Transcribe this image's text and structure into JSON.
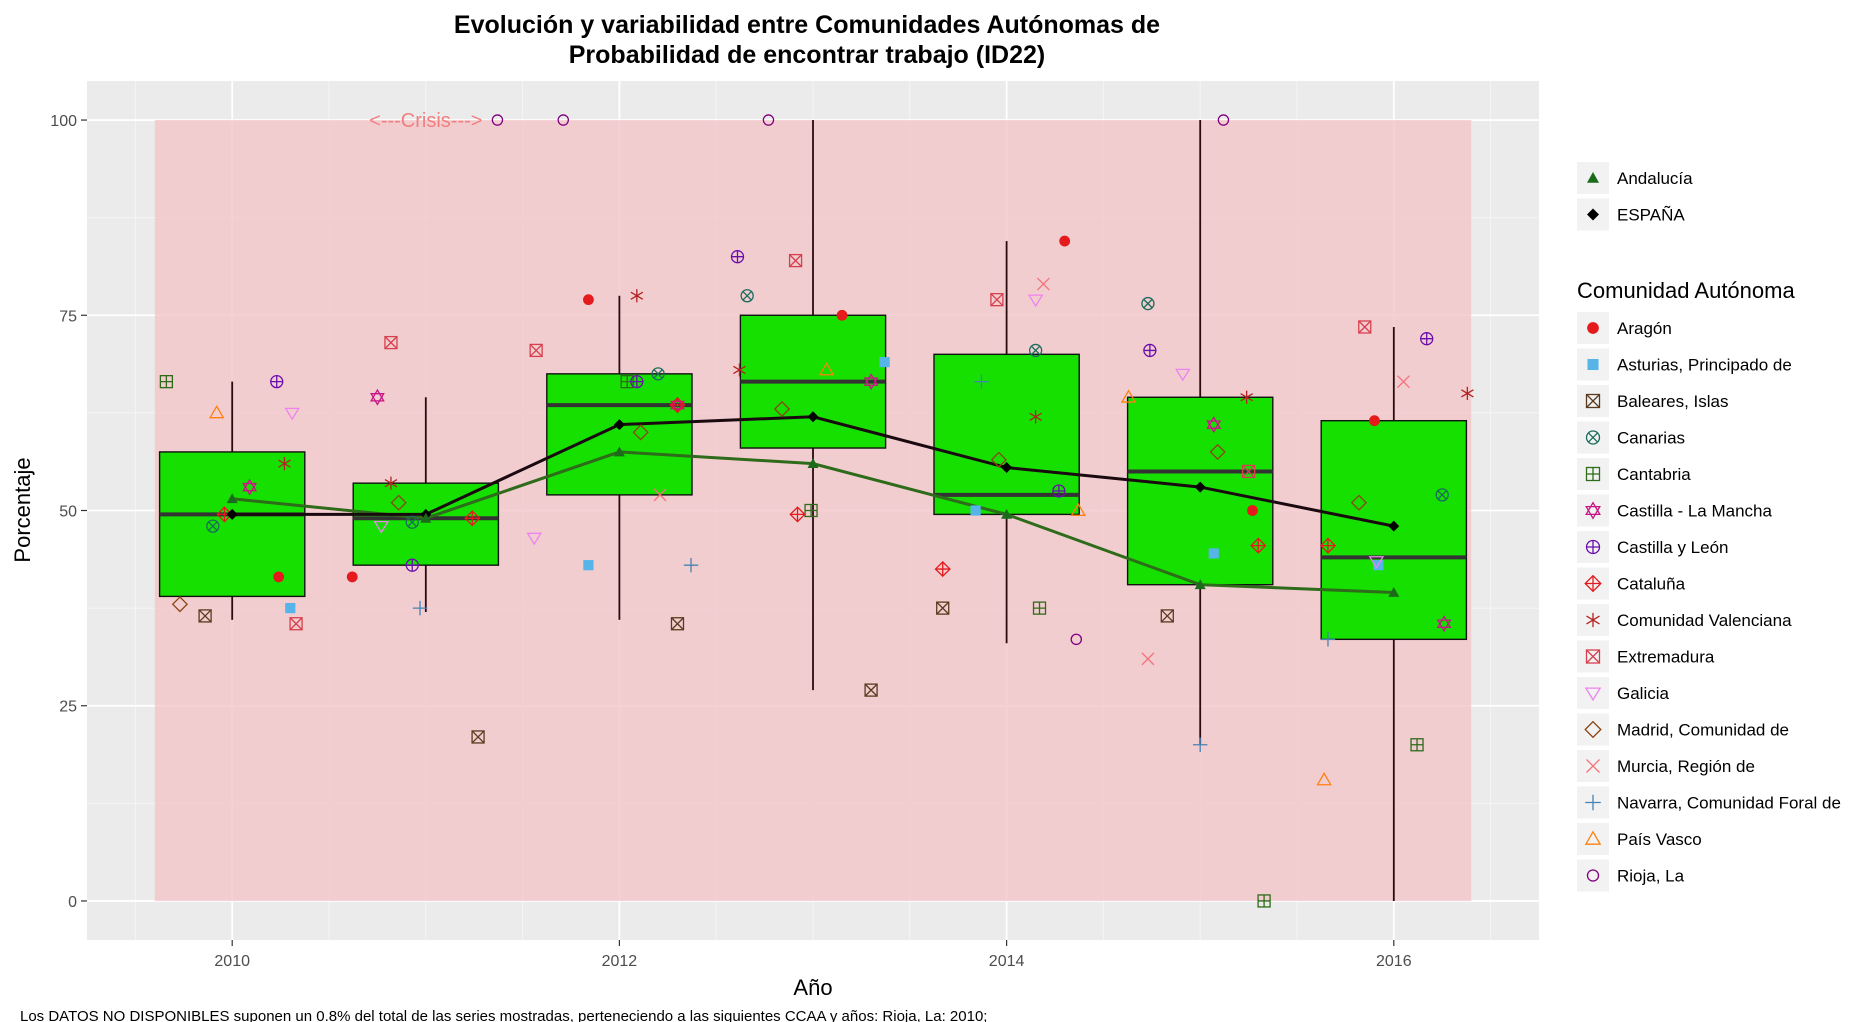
{
  "chart_data": {
    "type": "box",
    "title_line1": "Evolución y variabilidad entre Comunidades Autónomas de",
    "title_line2": "Probabilidad de encontrar trabajo (ID22)",
    "xlabel": "Año",
    "ylabel": "Porcentaje",
    "xlim": [
      2009.25,
      2016.75
    ],
    "ylim": [
      -5,
      105
    ],
    "x_ticks": [
      2010,
      2012,
      2014,
      2016
    ],
    "y_ticks": [
      0,
      25,
      50,
      75,
      100
    ],
    "grid": true,
    "caption": "Los DATOS NO DISPONIBLES suponen un 0.8% del total de las series mostradas, perteneciendo a las siguientes CCAA y años: Rioja, La: 2010;",
    "crisis_region": {
      "x": [
        2009.6,
        2016.4
      ],
      "y": [
        0,
        100
      ],
      "label": "<---Crisis--->",
      "label_x": 2011,
      "label_y": 100,
      "color": "#f08080"
    },
    "colors": {
      "box_fill": "#16e000",
      "panel_bg": "#ebebeb",
      "crisis_fill": "#f4c5c9",
      "median": "#333333",
      "espana_line": "#1a0a10",
      "andalucia_line": "#2e6b1a"
    },
    "boxes": [
      {
        "x": 2010,
        "lower_whisker": 36,
        "q1": 39,
        "median": 49.5,
        "q3": 57.5,
        "upper_whisker": 66.5
      },
      {
        "x": 2011,
        "lower_whisker": 37,
        "q1": 43,
        "median": 49,
        "q3": 53.5,
        "upper_whisker": 64.5
      },
      {
        "x": 2012,
        "lower_whisker": 36,
        "q1": 52,
        "median": 63.5,
        "q3": 67.5,
        "upper_whisker": 77.5
      },
      {
        "x": 2013,
        "lower_whisker": 27,
        "q1": 58,
        "median": 66.5,
        "q3": 75,
        "upper_whisker": 100
      },
      {
        "x": 2014,
        "lower_whisker": 33,
        "q1": 49.5,
        "median": 52,
        "q3": 70,
        "upper_whisker": 84.5
      },
      {
        "x": 2015,
        "lower_whisker": 20,
        "q1": 40.5,
        "median": 55,
        "q3": 64.5,
        "upper_whisker": 100
      },
      {
        "x": 2016,
        "lower_whisker": 0,
        "q1": 33.5,
        "median": 44,
        "q3": 61.5,
        "upper_whisker": 73.5
      }
    ],
    "series": [
      {
        "name": "ESPAÑA",
        "color": "#000000",
        "shape": "diamond",
        "x": [
          2010,
          2011,
          2012,
          2013,
          2014,
          2015,
          2016
        ],
        "values": [
          49.5,
          49.5,
          61,
          62,
          55.5,
          53,
          48
        ]
      },
      {
        "name": "Andalucía",
        "color": "#1a6b1a",
        "shape": "triangle",
        "x": [
          2010,
          2011,
          2012,
          2013,
          2014,
          2015,
          2016
        ],
        "values": [
          51.5,
          49,
          57.5,
          56,
          49.5,
          40.5,
          39.5
        ]
      }
    ],
    "legend_top": [
      {
        "name": "Andalucía",
        "shape": "triangle-filled",
        "color": "#1a6b1a"
      },
      {
        "name": "ESPAÑA",
        "shape": "diamond-filled",
        "color": "#000000"
      }
    ],
    "legend_title": "Comunidad Autónoma",
    "legend": [
      {
        "name": "Aragón",
        "shape": "circle-filled",
        "color": "#e41a1c"
      },
      {
        "name": "Asturias, Principado de",
        "shape": "square-filled",
        "color": "#56b4e9"
      },
      {
        "name": "Baleares, Islas",
        "shape": "square-x",
        "color": "#5c3a1e"
      },
      {
        "name": "Canarias",
        "shape": "circle-x",
        "color": "#1a6b5c"
      },
      {
        "name": "Cantabria",
        "shape": "square-plus",
        "color": "#2e6b1a"
      },
      {
        "name": "Castilla - La Mancha",
        "shape": "star-of-david",
        "color": "#c71585"
      },
      {
        "name": "Castilla y León",
        "shape": "circle-plus",
        "color": "#6a0dad"
      },
      {
        "name": "Cataluña",
        "shape": "diamond-plus",
        "color": "#e41a1c"
      },
      {
        "name": "Comunidad Valenciana",
        "shape": "asterisk",
        "color": "#b22222"
      },
      {
        "name": "Extremadura",
        "shape": "square-x",
        "color": "#d6404e"
      },
      {
        "name": "Galicia",
        "shape": "triangle-down",
        "color": "#ee82ee"
      },
      {
        "name": "Madrid, Comunidad de",
        "shape": "diamond",
        "color": "#8b4513"
      },
      {
        "name": "Murcia, Región de",
        "shape": "x",
        "color": "#f4727a"
      },
      {
        "name": "Navarra, Comunidad Foral de",
        "shape": "plus",
        "color": "#4682b4"
      },
      {
        "name": "País Vasco",
        "shape": "triangle",
        "color": "#ff7f0e"
      },
      {
        "name": "Rioja, La",
        "shape": "circle",
        "color": "#800080"
      }
    ],
    "points": [
      {
        "series": "Aragón",
        "x": 2010.24,
        "y": 41.5
      },
      {
        "series": "Aragón",
        "x": 2010.62,
        "y": 41.5
      },
      {
        "series": "Aragón",
        "x": 2011.84,
        "y": 77
      },
      {
        "series": "Aragón",
        "x": 2013.15,
        "y": 75
      },
      {
        "series": "Aragón",
        "x": 2014.3,
        "y": 84.5
      },
      {
        "series": "Aragón",
        "x": 2015.27,
        "y": 50
      },
      {
        "series": "Aragón",
        "x": 2015.9,
        "y": 61.5
      },
      {
        "series": "Asturias, Principado de",
        "x": 2010.3,
        "y": 37.5
      },
      {
        "series": "Asturias, Principado de",
        "x": 2011.84,
        "y": 43
      },
      {
        "series": "Asturias, Principado de",
        "x": 2013.37,
        "y": 69
      },
      {
        "series": "Asturias, Principado de",
        "x": 2013.84,
        "y": 50
      },
      {
        "series": "Asturias, Principado de",
        "x": 2015.07,
        "y": 44.5
      },
      {
        "series": "Asturias, Principado de",
        "x": 2015.92,
        "y": 43
      },
      {
        "series": "Baleares, Islas",
        "x": 2009.86,
        "y": 36.5
      },
      {
        "series": "Baleares, Islas",
        "x": 2011.27,
        "y": 21
      },
      {
        "series": "Baleares, Islas",
        "x": 2012.3,
        "y": 35.5
      },
      {
        "series": "Baleares, Islas",
        "x": 2013.3,
        "y": 27
      },
      {
        "series": "Baleares, Islas",
        "x": 2013.67,
        "y": 37.5
      },
      {
        "series": "Baleares, Islas",
        "x": 2014.83,
        "y": 36.5
      },
      {
        "series": "Canarias",
        "x": 2009.9,
        "y": 48
      },
      {
        "series": "Canarias",
        "x": 2010.93,
        "y": 48.5
      },
      {
        "series": "Canarias",
        "x": 2012.2,
        "y": 67.5
      },
      {
        "series": "Canarias",
        "x": 2012.66,
        "y": 77.5
      },
      {
        "series": "Canarias",
        "x": 2014.15,
        "y": 70.5
      },
      {
        "series": "Canarias",
        "x": 2014.73,
        "y": 76.5
      },
      {
        "series": "Canarias",
        "x": 2016.25,
        "y": 52
      },
      {
        "series": "Cantabria",
        "x": 2009.66,
        "y": 66.5
      },
      {
        "series": "Cantabria",
        "x": 2012.04,
        "y": 66.5
      },
      {
        "series": "Cantabria",
        "x": 2012.99,
        "y": 50
      },
      {
        "series": "Cantabria",
        "x": 2014.17,
        "y": 37.5
      },
      {
        "series": "Cantabria",
        "x": 2015.33,
        "y": 0
      },
      {
        "series": "Cantabria",
        "x": 2016.12,
        "y": 20
      },
      {
        "series": "Castilla - La Mancha",
        "x": 2010.09,
        "y": 53
      },
      {
        "series": "Castilla - La Mancha",
        "x": 2010.75,
        "y": 64.5
      },
      {
        "series": "Castilla - La Mancha",
        "x": 2012.3,
        "y": 63.5
      },
      {
        "series": "Castilla - La Mancha",
        "x": 2013.3,
        "y": 66.5
      },
      {
        "series": "Castilla - La Mancha",
        "x": 2015.07,
        "y": 61
      },
      {
        "series": "Castilla - La Mancha",
        "x": 2016.26,
        "y": 35.5
      },
      {
        "series": "Castilla y León",
        "x": 2010.23,
        "y": 66.5
      },
      {
        "series": "Castilla y León",
        "x": 2010.93,
        "y": 43
      },
      {
        "series": "Castilla y León",
        "x": 2012.09,
        "y": 66.5
      },
      {
        "series": "Castilla y León",
        "x": 2012.61,
        "y": 82.5
      },
      {
        "series": "Castilla y León",
        "x": 2014.27,
        "y": 52.5
      },
      {
        "series": "Castilla y León",
        "x": 2014.74,
        "y": 70.5
      },
      {
        "series": "Castilla y León",
        "x": 2016.17,
        "y": 72
      },
      {
        "series": "Cataluña",
        "x": 2009.96,
        "y": 49.5
      },
      {
        "series": "Cataluña",
        "x": 2011.24,
        "y": 49
      },
      {
        "series": "Cataluña",
        "x": 2012.3,
        "y": 63.5
      },
      {
        "series": "Cataluña",
        "x": 2012.92,
        "y": 49.5
      },
      {
        "series": "Cataluña",
        "x": 2013.67,
        "y": 42.5
      },
      {
        "series": "Cataluña",
        "x": 2015.3,
        "y": 45.5
      },
      {
        "series": "Cataluña",
        "x": 2015.66,
        "y": 45.5
      },
      {
        "series": "Comunidad Valenciana",
        "x": 2010.27,
        "y": 56
      },
      {
        "series": "Comunidad Valenciana",
        "x": 2010.82,
        "y": 53.5
      },
      {
        "series": "Comunidad Valenciana",
        "x": 2012.09,
        "y": 77.5
      },
      {
        "series": "Comunidad Valenciana",
        "x": 2012.62,
        "y": 68
      },
      {
        "series": "Comunidad Valenciana",
        "x": 2014.15,
        "y": 62
      },
      {
        "series": "Comunidad Valenciana",
        "x": 2015.24,
        "y": 64.5
      },
      {
        "series": "Comunidad Valenciana",
        "x": 2016.38,
        "y": 65
      },
      {
        "series": "Extremadura",
        "x": 2010.33,
        "y": 35.5
      },
      {
        "series": "Extremadura",
        "x": 2010.82,
        "y": 71.5
      },
      {
        "series": "Extremadura",
        "x": 2011.57,
        "y": 70.5
      },
      {
        "series": "Extremadura",
        "x": 2012.91,
        "y": 82
      },
      {
        "series": "Extremadura",
        "x": 2013.95,
        "y": 77
      },
      {
        "series": "Extremadura",
        "x": 2015.25,
        "y": 55
      },
      {
        "series": "Extremadura",
        "x": 2015.85,
        "y": 73.5
      },
      {
        "series": "Galicia",
        "x": 2010.31,
        "y": 62.5
      },
      {
        "series": "Galicia",
        "x": 2010.77,
        "y": 48
      },
      {
        "series": "Galicia",
        "x": 2011.56,
        "y": 46.5
      },
      {
        "series": "Galicia",
        "x": 2014.15,
        "y": 77
      },
      {
        "series": "Galicia",
        "x": 2014.91,
        "y": 67.5
      },
      {
        "series": "Galicia",
        "x": 2015.91,
        "y": 43.5
      },
      {
        "series": "Madrid, Comunidad de",
        "x": 2009.73,
        "y": 38
      },
      {
        "series": "Madrid, Comunidad de",
        "x": 2010.86,
        "y": 51
      },
      {
        "series": "Madrid, Comunidad de",
        "x": 2012.11,
        "y": 60
      },
      {
        "series": "Madrid, Comunidad de",
        "x": 2012.84,
        "y": 63
      },
      {
        "series": "Madrid, Comunidad de",
        "x": 2013.96,
        "y": 56.5
      },
      {
        "series": "Madrid, Comunidad de",
        "x": 2015.09,
        "y": 57.5
      },
      {
        "series": "Madrid, Comunidad de",
        "x": 2015.82,
        "y": 51
      },
      {
        "series": "Murcia, Región de",
        "x": 2012.21,
        "y": 52
      },
      {
        "series": "Murcia, Región de",
        "x": 2014.19,
        "y": 79
      },
      {
        "series": "Murcia, Región de",
        "x": 2014.73,
        "y": 31
      },
      {
        "series": "Murcia, Región de",
        "x": 2016.05,
        "y": 66.5
      },
      {
        "series": "Navarra, Comunidad Foral de",
        "x": 2010.97,
        "y": 37.5
      },
      {
        "series": "Navarra, Comunidad Foral de",
        "x": 2012.37,
        "y": 43
      },
      {
        "series": "Navarra, Comunidad Foral de",
        "x": 2013.87,
        "y": 66.5
      },
      {
        "series": "Navarra, Comunidad Foral de",
        "x": 2015.0,
        "y": 20
      },
      {
        "series": "Navarra, Comunidad Foral de",
        "x": 2015.66,
        "y": 33.5
      },
      {
        "series": "País Vasco",
        "x": 2009.92,
        "y": 62.5
      },
      {
        "series": "País Vasco",
        "x": 2013.07,
        "y": 68
      },
      {
        "series": "País Vasco",
        "x": 2014.37,
        "y": 50
      },
      {
        "series": "País Vasco",
        "x": 2014.63,
        "y": 64.5
      },
      {
        "series": "País Vasco",
        "x": 2015.64,
        "y": 15.5
      },
      {
        "series": "Rioja, La",
        "x": 2011.37,
        "y": 100
      },
      {
        "series": "Rioja, La",
        "x": 2011.71,
        "y": 100
      },
      {
        "series": "Rioja, La",
        "x": 2012.77,
        "y": 100
      },
      {
        "series": "Rioja, La",
        "x": 2014.36,
        "y": 33.5
      },
      {
        "series": "Rioja, La",
        "x": 2015.12,
        "y": 100
      }
    ]
  }
}
